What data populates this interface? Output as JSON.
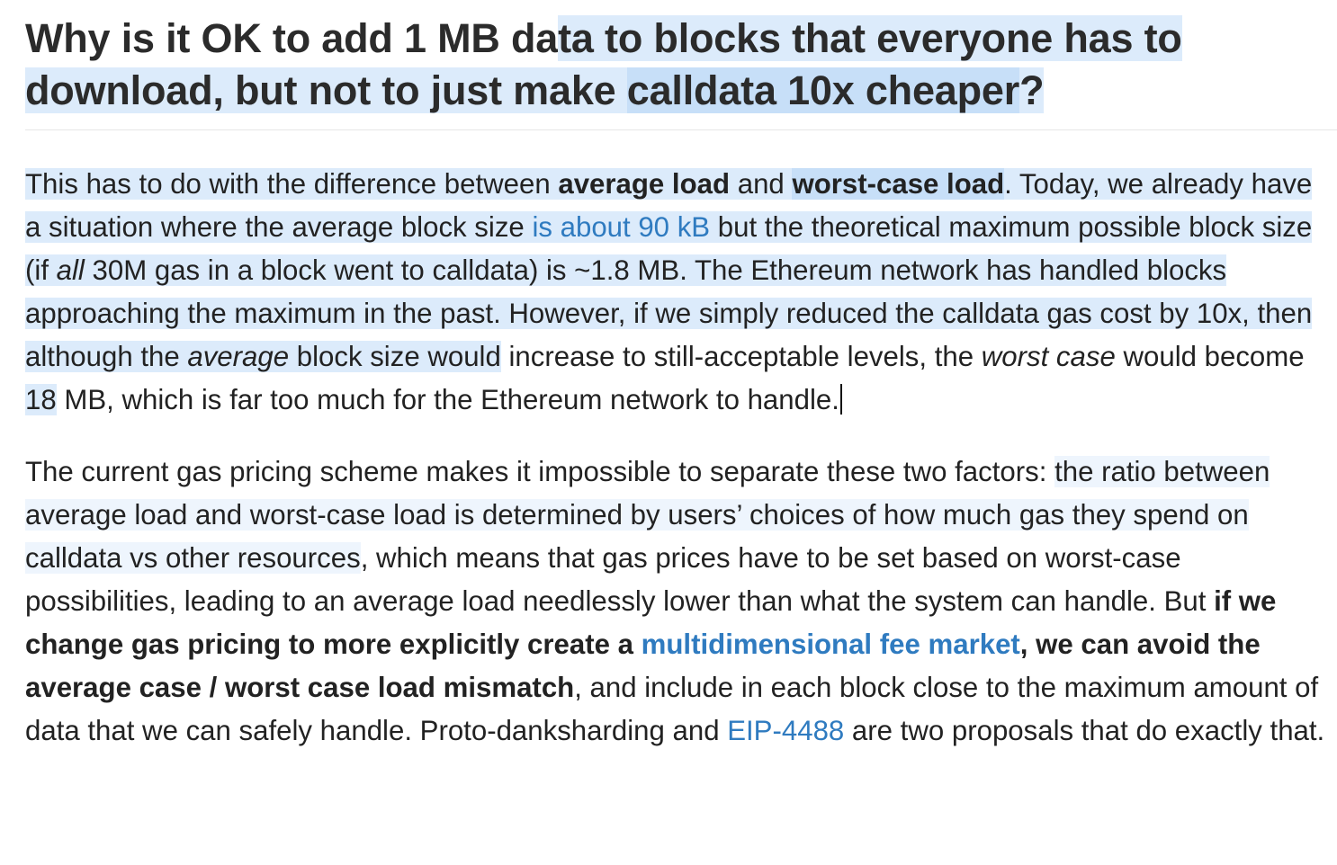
{
  "heading": {
    "part1": "Why is it OK to add 1 MB da",
    "part2": "ta to blocks that everyone has to download, but not to just make ",
    "part3": "calldata 10x cheaper",
    "part4": "?"
  },
  "paragraph1": {
    "t1": "This has to do with the difference between ",
    "b1": "average load",
    "t2": " and ",
    "b2": "worst-case load",
    "t3": ". Today, we already have a situation where the average block size ",
    "link1": "is about 90 kB",
    "t4": " but the theoretical maximum possible block size (if ",
    "i1": "all",
    "t5": " 30M gas in a block went to calldata) is ~1.8 MB. The Ethereum network has handled blocks approaching the maximum in the past. However, if we simply reduced the calldata gas cost by 10x, then although the ",
    "i2": "average",
    "t6": " block size would",
    "t7": " increase to still-acceptable levels, the ",
    "i3": "worst case",
    "t8": " would become ",
    "n1": "18",
    "t9": " MB, which is far too much for the Ethereum network to handle."
  },
  "paragraph2": {
    "t1": "The current gas pricing scheme makes it impossible to separate these two factors: ",
    "h1": "the ratio between average load and worst-case load is determined by users’ choices of how much gas they spend on calldata vs other resources",
    "t2": ", which means that gas prices have to be set based on worst-case possibilities, leading to an average load needlessly lower than what the system can handle. But ",
    "b1": "if we change gas pricing to more explicitly create a ",
    "link1": "multidimensional fee market",
    "b2": ", we can avoid the average case / worst case load mismatch",
    "t3": ", and include in each block close to the maximum amount of data that we can safely handle. Proto-danksharding and ",
    "link2": "EIP-4488",
    "t4": " are two proposals that do exactly that."
  },
  "colors": {
    "text": "#222222",
    "link": "#2f7bc0",
    "selection": "#dcebfb",
    "selection_strong": "#c7dff8"
  }
}
